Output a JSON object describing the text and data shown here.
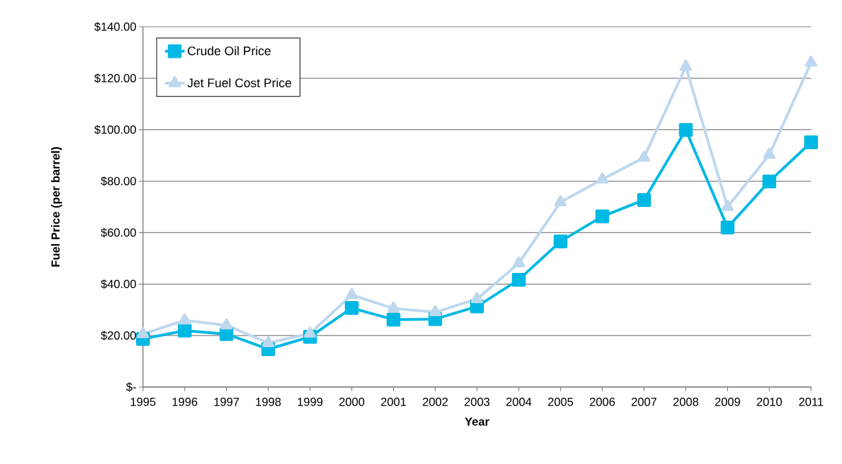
{
  "chart_data": {
    "type": "line",
    "xlabel": "Year",
    "ylabel": "Fuel Price (per barrel)",
    "categories": [
      "1995",
      "1996",
      "1997",
      "1998",
      "1999",
      "2000",
      "2001",
      "2002",
      "2003",
      "2004",
      "2005",
      "2006",
      "2007",
      "2008",
      "2009",
      "2010",
      "2011"
    ],
    "series": [
      {
        "name": "Crude Oil Price",
        "color": "#00b8e4",
        "marker": "square",
        "values": [
          18.7,
          21.9,
          20.6,
          14.7,
          19.5,
          30.7,
          26.2,
          26.4,
          31.3,
          41.7,
          56.6,
          66.3,
          72.7,
          99.9,
          62.0,
          79.9,
          95.1
        ]
      },
      {
        "name": "Jet Fuel Cost Price",
        "color": "#bdd7ee",
        "marker": "triangle",
        "values": [
          20.6,
          25.9,
          24.0,
          17.1,
          20.8,
          35.8,
          30.5,
          29.1,
          34.2,
          48.1,
          71.9,
          80.7,
          89.2,
          124.5,
          70.0,
          90.3,
          126.1
        ]
      }
    ],
    "ylim": [
      0,
      140
    ],
    "yticks": [
      {
        "value": 0,
        "label": "$-"
      },
      {
        "value": 20,
        "label": "$20.00"
      },
      {
        "value": 40,
        "label": "$40.00"
      },
      {
        "value": 60,
        "label": "$60.00"
      },
      {
        "value": 80,
        "label": "$80.00"
      },
      {
        "value": 100,
        "label": "$100.00"
      },
      {
        "value": 120,
        "label": "$120.00"
      },
      {
        "value": 140,
        "label": "$140.00"
      }
    ],
    "grid": "y",
    "legend": "top left",
    "line_style": "solid"
  }
}
